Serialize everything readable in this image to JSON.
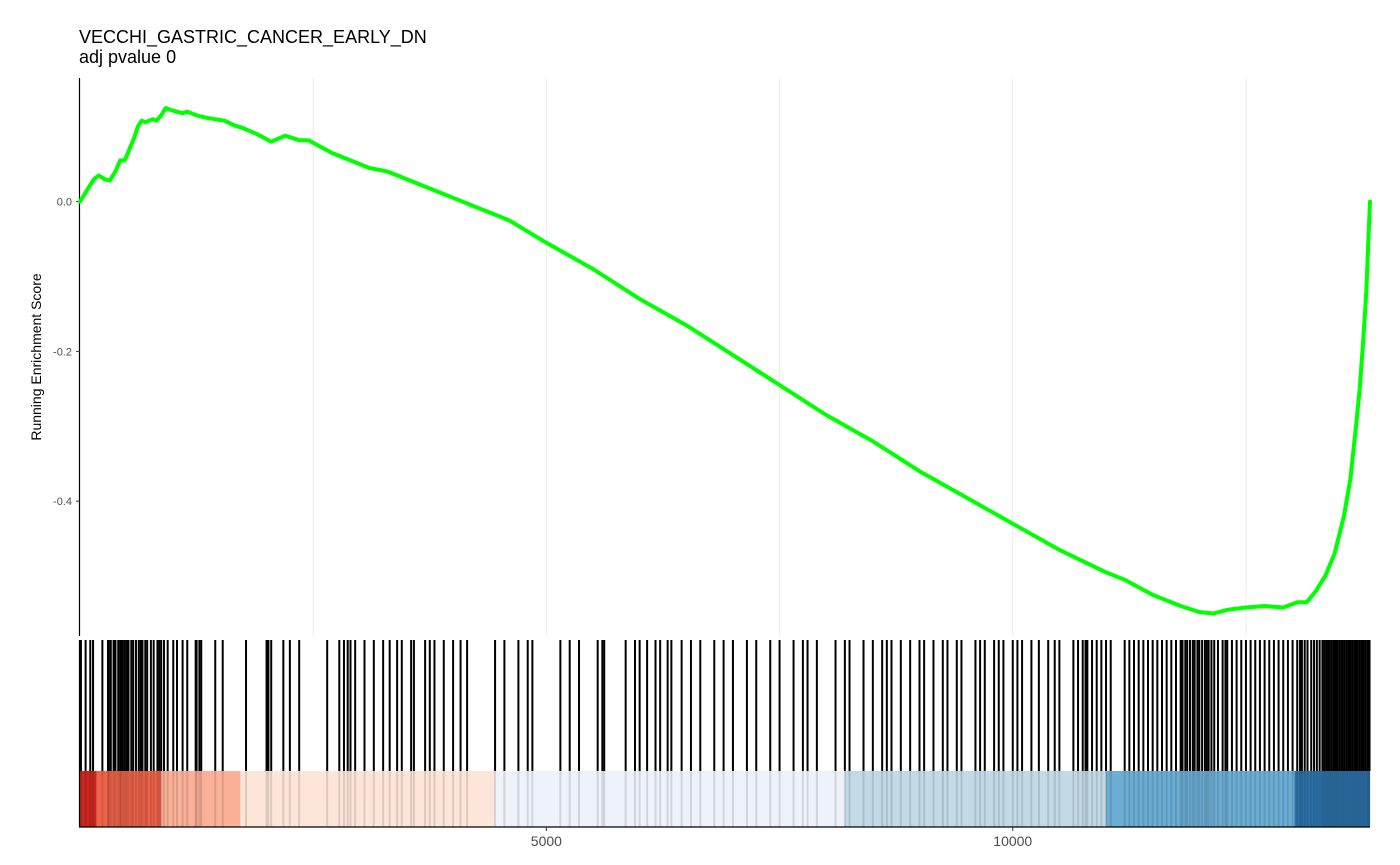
{
  "chart_data": {
    "type": "line",
    "title": "VECCHI_GASTRIC_CANCER_EARLY_DN",
    "subtitle": "adj pvalue 0",
    "ylabel": "Running Enrichment Score",
    "xlabel": "",
    "xlim": [
      0,
      13830
    ],
    "ylim": [
      -0.58,
      0.165
    ],
    "xticks": [
      5000,
      10000
    ],
    "xtick_labels": [
      "5000",
      "10000"
    ],
    "xgrid": [
      2500,
      5000,
      7500,
      10000,
      12500
    ],
    "yticks": [
      0.0,
      -0.2,
      -0.4
    ],
    "ytick_labels": [
      "0.0",
      "-0.2",
      "-0.4"
    ],
    "grid": true,
    "line_color": "#00FF00",
    "series": [
      {
        "x": [
          0,
          50,
          100,
          150,
          200,
          260,
          320,
          380,
          430,
          480,
          530,
          580,
          620,
          660,
          700,
          740,
          780,
          820,
          870,
          920,
          980,
          1040,
          1100,
          1150,
          1250,
          1350,
          1450,
          1550,
          1650,
          1750,
          1900,
          2050,
          2200,
          2350,
          2450,
          2550,
          2700,
          2900,
          3100,
          3300,
          3500,
          3700,
          4000,
          4300,
          4600,
          5000,
          5500,
          6000,
          6500,
          7000,
          7500,
          8000,
          8500,
          9000,
          9500,
          10000,
          10500,
          11000,
          11200,
          11500,
          11800,
          12000,
          12150,
          12300,
          12500,
          12700,
          12900,
          13050,
          13150,
          13250,
          13350,
          13450,
          13550,
          13620,
          13680,
          13720,
          13760,
          13790,
          13810,
          13830
        ],
        "y": [
          0.0,
          0.01,
          0.02,
          0.03,
          0.035,
          0.03,
          0.028,
          0.04,
          0.055,
          0.055,
          0.07,
          0.085,
          0.1,
          0.108,
          0.106,
          0.108,
          0.11,
          0.108,
          0.115,
          0.125,
          0.122,
          0.12,
          0.118,
          0.12,
          0.115,
          0.112,
          0.11,
          0.108,
          0.102,
          0.098,
          0.09,
          0.08,
          0.088,
          0.082,
          0.082,
          0.075,
          0.065,
          0.055,
          0.045,
          0.04,
          0.03,
          0.02,
          0.005,
          -0.01,
          -0.025,
          -0.055,
          -0.09,
          -0.13,
          -0.165,
          -0.205,
          -0.245,
          -0.285,
          -0.32,
          -0.36,
          -0.395,
          -0.43,
          -0.465,
          -0.495,
          -0.505,
          -0.525,
          -0.54,
          -0.548,
          -0.55,
          -0.545,
          -0.542,
          -0.54,
          -0.542,
          -0.535,
          -0.535,
          -0.52,
          -0.5,
          -0.47,
          -0.42,
          -0.37,
          -0.3,
          -0.25,
          -0.18,
          -0.12,
          -0.06,
          0.0
        ]
      }
    ],
    "hits": [
      10,
      60,
      110,
      140,
      240,
      300,
      310,
      330,
      360,
      380,
      410,
      430,
      440,
      460,
      480,
      500,
      520,
      550,
      570,
      600,
      630,
      650,
      670,
      700,
      720,
      760,
      790,
      830,
      850,
      870,
      900,
      940,
      1000,
      1040,
      1100,
      1150,
      1240,
      1250,
      1280,
      1300,
      1450,
      1530,
      1780,
      2000,
      2020,
      2050,
      2180,
      2250,
      2350,
      2650,
      2780,
      2830,
      2870,
      2900,
      2950,
      3050,
      3150,
      3250,
      3320,
      3400,
      3450,
      3550,
      3580,
      3700,
      3750,
      3800,
      3900,
      4000,
      4080,
      4150,
      4450,
      4550,
      4700,
      4800,
      4850,
      5150,
      5250,
      5350,
      5550,
      5600,
      5620,
      5850,
      5950,
      6000,
      6080,
      6170,
      6220,
      6300,
      6340,
      6450,
      6550,
      6650,
      6800,
      6900,
      7000,
      7150,
      7250,
      7400,
      7500,
      7650,
      7750,
      7800,
      7900,
      8100,
      8200,
      8250,
      8400,
      8500,
      8600,
      8650,
      8700,
      8800,
      8900,
      9000,
      9050,
      9150,
      9250,
      9300,
      9400,
      9450,
      9600,
      9650,
      9700,
      9800,
      9850,
      9900,
      10000,
      10050,
      10100,
      10200,
      10280,
      10380,
      10450,
      10500,
      10650,
      10700,
      10750,
      10780,
      10800,
      10850,
      10900,
      10950,
      11000,
      11050,
      11200,
      11250,
      11300,
      11350,
      11400,
      11450,
      11500,
      11550,
      11600,
      11650,
      11700,
      11750,
      11800,
      11820,
      11850,
      11870,
      11900,
      11930,
      11950,
      11980,
      12000,
      12030,
      12060,
      12080,
      12100,
      12130,
      12160,
      12200,
      12250,
      12280,
      12300,
      12350,
      12400,
      12450,
      12500,
      12550,
      12600,
      12650,
      12700,
      12750,
      12800,
      12850,
      12900,
      12950,
      13000,
      13050,
      13080,
      13100,
      13130,
      13160,
      13200,
      13230,
      13260,
      13290,
      13320,
      13340,
      13360,
      13380,
      13400,
      13420,
      13440,
      13460,
      13480,
      13500,
      13520,
      13540,
      13560,
      13580,
      13600,
      13620,
      13640,
      13660,
      13680,
      13700,
      13720,
      13740,
      13760,
      13780,
      13800,
      13815,
      13825
    ],
    "rank_color_bands": [
      {
        "x0": 0,
        "x1": 180,
        "color": "#C9271F"
      },
      {
        "x0": 180,
        "x1": 870,
        "color": "#EE6449"
      },
      {
        "x0": 870,
        "x1": 1720,
        "color": "#FBB197"
      },
      {
        "x0": 1720,
        "x1": 4450,
        "color": "#FDE5D9"
      },
      {
        "x0": 4450,
        "x1": 8200,
        "color": "#EEF2FA"
      },
      {
        "x0": 8200,
        "x1": 11000,
        "color": "#C3DAE6"
      },
      {
        "x0": 11000,
        "x1": 13020,
        "color": "#6CADD4"
      },
      {
        "x0": 13020,
        "x1": 13830,
        "color": "#2D73AB"
      }
    ]
  }
}
